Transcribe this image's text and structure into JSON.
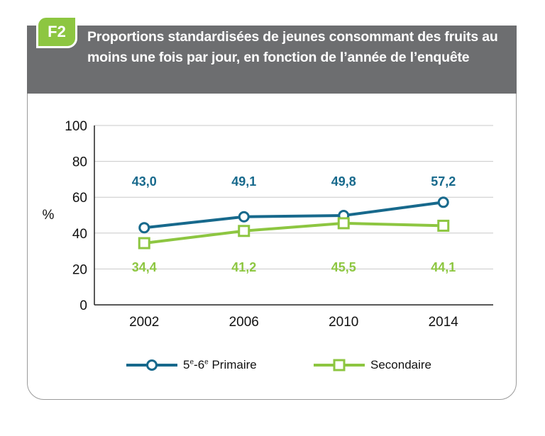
{
  "figure": {
    "badge": "F2",
    "title": "Proportions standardisées de jeunes consommant des fruits au moins une fois par jour, en fonction de l’année de l’enquête"
  },
  "chart_data": {
    "type": "line",
    "title": "Proportions standardisées de jeunes consommant des fruits au moins une fois par jour, en fonction de l’année de l’enquête",
    "x": [
      "2002",
      "2006",
      "2010",
      "2014"
    ],
    "ylabel": "%",
    "ylim": [
      0,
      100
    ],
    "yticks": [
      0,
      20,
      40,
      60,
      80,
      100
    ],
    "grid": true,
    "legend_position": "bottom",
    "series": [
      {
        "name": "5e-6e Primaire",
        "values": [
          43.0,
          49.1,
          49.8,
          57.2
        ],
        "labels": [
          "43,0",
          "49,1",
          "49,8",
          "57,2"
        ],
        "color": "#17698c",
        "marker": "circle"
      },
      {
        "name": "Secondaire",
        "values": [
          34.4,
          41.2,
          45.5,
          44.1
        ],
        "labels": [
          "34,4",
          "41,2",
          "45,5",
          "44,1"
        ],
        "color": "#8dc641",
        "marker": "square"
      }
    ]
  },
  "legend": {
    "primaire": {
      "main": "5",
      "sup1": "e",
      "mid": "-6",
      "sup2": "e",
      "rest": " Primaire"
    },
    "secondaire": "Secondaire"
  }
}
